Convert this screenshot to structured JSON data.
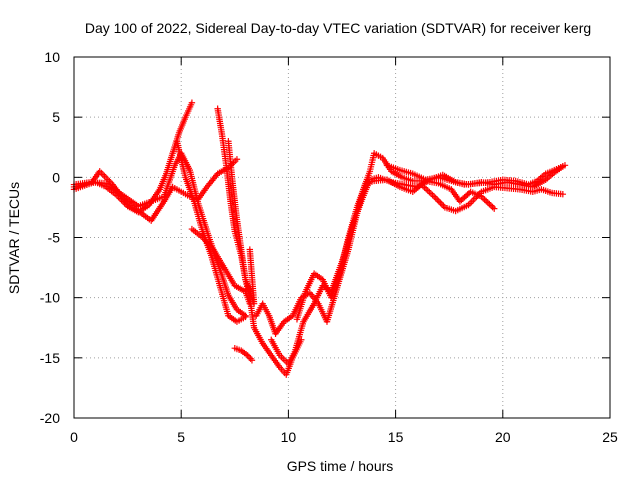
{
  "chart_data": {
    "type": "scatter",
    "title": "Day 100 of 2022, Sidereal Day-to-day VTEC variation (SDTVAR) for receiver kerg",
    "xlabel": "GPS time / hours",
    "ylabel": "SDTVAR / TECUs",
    "xlim": [
      0,
      25
    ],
    "ylim": [
      -20,
      10
    ],
    "xticks": [
      0,
      5,
      10,
      15,
      20,
      25
    ],
    "yticks": [
      -20,
      -15,
      -10,
      -5,
      0,
      5,
      10
    ],
    "grid": true,
    "marker": "+",
    "color": "#ff0000",
    "series": [
      {
        "name": "trace-1",
        "points": [
          [
            0,
            -0.8
          ],
          [
            0.5,
            -0.6
          ],
          [
            1,
            -0.4
          ],
          [
            1.5,
            -0.8
          ],
          [
            2,
            -1.5
          ],
          [
            2.5,
            -2.4
          ],
          [
            3,
            -2.9
          ],
          [
            3.5,
            -2.3
          ],
          [
            4,
            -1.0
          ],
          [
            4.3,
            0.3
          ],
          [
            4.6,
            2.0
          ],
          [
            4.9,
            3.7
          ],
          [
            5.2,
            5.0
          ],
          [
            5.5,
            6.2
          ]
        ]
      },
      {
        "name": "trace-2",
        "points": [
          [
            0,
            -1.0
          ],
          [
            0.8,
            -0.5
          ],
          [
            1.2,
            0.5
          ],
          [
            1.8,
            -0.6
          ],
          [
            2.4,
            -2.0
          ],
          [
            3.0,
            -2.8
          ],
          [
            3.6,
            -3.6
          ],
          [
            4.2,
            -2.0
          ],
          [
            4.6,
            -0.8
          ],
          [
            5.0,
            -1.2
          ],
          [
            5.4,
            -1.6
          ],
          [
            5.8,
            -1.8
          ],
          [
            6.2,
            -0.8
          ],
          [
            6.7,
            0.3
          ],
          [
            7.2,
            0.8
          ],
          [
            7.6,
            1.5
          ]
        ]
      },
      {
        "name": "trace-3",
        "points": [
          [
            0,
            -0.6
          ],
          [
            0.8,
            -0.4
          ],
          [
            1.5,
            -0.5
          ],
          [
            2.2,
            -1.4
          ],
          [
            3.0,
            -2.4
          ],
          [
            3.6,
            -2.0
          ],
          [
            4.2,
            -1.6
          ],
          [
            4.7,
            1.0
          ],
          [
            5.0,
            2.0
          ],
          [
            5.4,
            0.6
          ],
          [
            5.8,
            -2.2
          ],
          [
            6.3,
            -5.0
          ],
          [
            6.8,
            -7.6
          ],
          [
            7.2,
            -9.8
          ],
          [
            7.6,
            -11.0
          ],
          [
            8.0,
            -11.5
          ]
        ]
      },
      {
        "name": "trace-4",
        "points": [
          [
            4.8,
            3.0
          ],
          [
            5.2,
            0.0
          ],
          [
            5.6,
            -2.0
          ],
          [
            6.0,
            -4.5
          ],
          [
            6.4,
            -6.5
          ],
          [
            6.8,
            -9.0
          ],
          [
            7.2,
            -11.5
          ],
          [
            7.6,
            -12.0
          ],
          [
            8.0,
            -11.6
          ]
        ]
      },
      {
        "name": "trace-5",
        "points": [
          [
            6.7,
            5.7
          ],
          [
            6.9,
            3.6
          ],
          [
            7.1,
            1.0
          ],
          [
            7.3,
            -2.0
          ],
          [
            7.5,
            -4.5
          ],
          [
            7.8,
            -6.5
          ],
          [
            8.0,
            -8.5
          ],
          [
            8.2,
            -10.0
          ],
          [
            8.4,
            -12.5
          ],
          [
            8.8,
            -13.8
          ],
          [
            9.2,
            -14.8
          ],
          [
            9.6,
            -15.8
          ],
          [
            9.9,
            -16.4
          ],
          [
            10.2,
            -15.0
          ],
          [
            10.6,
            -13.5
          ]
        ]
      },
      {
        "name": "trace-6",
        "points": [
          [
            5.5,
            -4.3
          ],
          [
            6.0,
            -5.0
          ],
          [
            6.5,
            -6.0
          ],
          [
            7.0,
            -7.5
          ],
          [
            7.5,
            -9.0
          ],
          [
            8.0,
            -9.5
          ],
          [
            8.2,
            -10.5
          ]
        ]
      },
      {
        "name": "trace-7",
        "points": [
          [
            7.2,
            3.0
          ],
          [
            7.4,
            -0.5
          ],
          [
            7.6,
            -3.5
          ],
          [
            7.8,
            -6.0
          ],
          [
            8.0,
            -8.5
          ],
          [
            8.2,
            -9.5
          ],
          [
            8.4,
            -10.5
          ],
          [
            8.2,
            -6.0
          ]
        ]
      },
      {
        "name": "trace-8",
        "points": [
          [
            7.5,
            -14.2
          ],
          [
            7.8,
            -14.4
          ],
          [
            8.1,
            -14.8
          ],
          [
            8.3,
            -15.2
          ]
        ]
      },
      {
        "name": "trace-9",
        "points": [
          [
            8.5,
            -11.5
          ],
          [
            8.8,
            -10.5
          ],
          [
            9.1,
            -11.5
          ],
          [
            9.4,
            -13.0
          ],
          [
            9.8,
            -12.0
          ],
          [
            10.2,
            -11.5
          ],
          [
            10.6,
            -10.0
          ],
          [
            11.0,
            -9.6
          ],
          [
            11.4,
            -10.5
          ],
          [
            11.8,
            -12.0
          ],
          [
            12.3,
            -9.0
          ],
          [
            12.8,
            -6.0
          ],
          [
            13.2,
            -3.0
          ],
          [
            13.5,
            -1.0
          ],
          [
            13.8,
            0.5
          ],
          [
            14.0,
            2.0
          ],
          [
            14.4,
            1.6
          ],
          [
            14.8,
            0.5
          ],
          [
            15.3,
            0.0
          ],
          [
            15.8,
            -0.3
          ],
          [
            16.4,
            -0.3
          ],
          [
            17.0,
            -0.5
          ],
          [
            17.6,
            -1.0
          ],
          [
            18.0,
            -2.0
          ],
          [
            18.5,
            -1.2
          ],
          [
            19.0,
            -1.6
          ],
          [
            19.6,
            -2.6
          ]
        ]
      },
      {
        "name": "trace-10",
        "points": [
          [
            9.2,
            -13.5
          ],
          [
            9.6,
            -14.8
          ],
          [
            10.0,
            -15.5
          ],
          [
            10.3,
            -14.5
          ],
          [
            10.7,
            -12.0
          ],
          [
            11.2,
            -10.5
          ],
          [
            11.6,
            -9.0
          ],
          [
            12.0,
            -9.5
          ],
          [
            12.5,
            -7.0
          ],
          [
            13.0,
            -4.0
          ],
          [
            13.4,
            -2.0
          ],
          [
            13.8,
            -0.2
          ],
          [
            14.2,
            0.0
          ],
          [
            14.8,
            -0.4
          ],
          [
            15.4,
            -0.6
          ],
          [
            16.0,
            -0.8
          ],
          [
            16.6,
            -0.2
          ],
          [
            17.2,
            0.2
          ],
          [
            17.8,
            -0.4
          ],
          [
            18.4,
            -0.6
          ],
          [
            19.0,
            -0.4
          ],
          [
            19.6,
            -0.6
          ],
          [
            20.2,
            -0.4
          ],
          [
            20.8,
            -0.6
          ],
          [
            21.4,
            -0.8
          ],
          [
            22.0,
            -0.2
          ],
          [
            22.4,
            0.4
          ],
          [
            22.8,
            0.9
          ]
        ]
      },
      {
        "name": "trace-11",
        "points": [
          [
            10.4,
            -11.8
          ],
          [
            10.8,
            -9.5
          ],
          [
            11.2,
            -8.0
          ],
          [
            11.6,
            -8.5
          ],
          [
            12.0,
            -10.0
          ],
          [
            12.4,
            -8.0
          ],
          [
            12.8,
            -5.0
          ],
          [
            13.2,
            -2.5
          ],
          [
            13.6,
            -0.5
          ],
          [
            14.0,
            -0.3
          ],
          [
            14.6,
            -0.2
          ],
          [
            15.2,
            -0.8
          ],
          [
            15.8,
            -1.2
          ],
          [
            16.2,
            -0.6
          ],
          [
            16.8,
            -1.6
          ],
          [
            17.3,
            -2.5
          ],
          [
            17.8,
            -2.8
          ],
          [
            18.4,
            -2.3
          ],
          [
            19.0,
            -1.2
          ],
          [
            19.6,
            -0.8
          ],
          [
            20.2,
            -0.9
          ],
          [
            20.8,
            -1.0
          ],
          [
            21.4,
            -1.2
          ],
          [
            21.8,
            -1.0
          ],
          [
            22.3,
            -1.3
          ],
          [
            22.8,
            -1.4
          ]
        ]
      },
      {
        "name": "trace-12",
        "points": [
          [
            14.6,
            1.0
          ],
          [
            15.2,
            0.6
          ],
          [
            15.8,
            0.3
          ],
          [
            16.4,
            -0.2
          ],
          [
            17.0,
            0.0
          ],
          [
            17.6,
            -0.3
          ],
          [
            18.2,
            -0.6
          ],
          [
            18.8,
            -0.5
          ],
          [
            19.4,
            -0.4
          ],
          [
            20.0,
            -0.2
          ],
          [
            20.6,
            -0.3
          ],
          [
            21.2,
            -0.6
          ],
          [
            21.6,
            -0.3
          ],
          [
            22.0,
            0.3
          ],
          [
            22.4,
            0.6
          ],
          [
            22.9,
            1.0
          ]
        ]
      }
    ]
  }
}
